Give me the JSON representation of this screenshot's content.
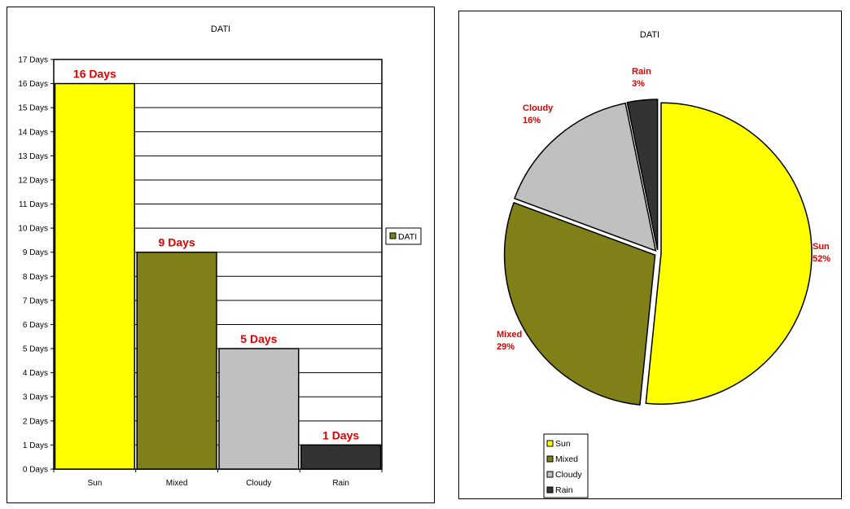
{
  "colors": {
    "sun": "#ffff00",
    "mixed": "#808018",
    "cloudy": "#c0c0c0",
    "rain": "#333333",
    "label": "#e00000"
  },
  "chart_data": [
    {
      "type": "bar",
      "title": "DATI",
      "categories": [
        "Sun",
        "Mixed",
        "Cloudy",
        "Rain"
      ],
      "series": [
        {
          "name": "DATI",
          "values": [
            16,
            9,
            5,
            1
          ]
        }
      ],
      "data_labels": [
        "16 Days",
        "9 Days",
        "5 Days",
        "1 Days"
      ],
      "ylim": [
        0,
        17
      ],
      "y_ticks": [
        "0 Days",
        "1 Days",
        "2 Days",
        "3 Days",
        "4 Days",
        "5 Days",
        "6 Days",
        "7 Days",
        "8 Days",
        "9 Days",
        "10 Days",
        "11 Days",
        "12 Days",
        "13 Days",
        "14 Days",
        "15 Days",
        "16 Days",
        "17 Days"
      ],
      "grid": true,
      "legend": "right",
      "xlabel": "",
      "ylabel": ""
    },
    {
      "type": "pie",
      "title": "DATI",
      "categories": [
        "Sun",
        "Mixed",
        "Cloudy",
        "Rain"
      ],
      "values": [
        16,
        9,
        5,
        1
      ],
      "percent_labels": [
        "52%",
        "29%",
        "16%",
        "3%"
      ],
      "legend": "bottom-left"
    }
  ]
}
